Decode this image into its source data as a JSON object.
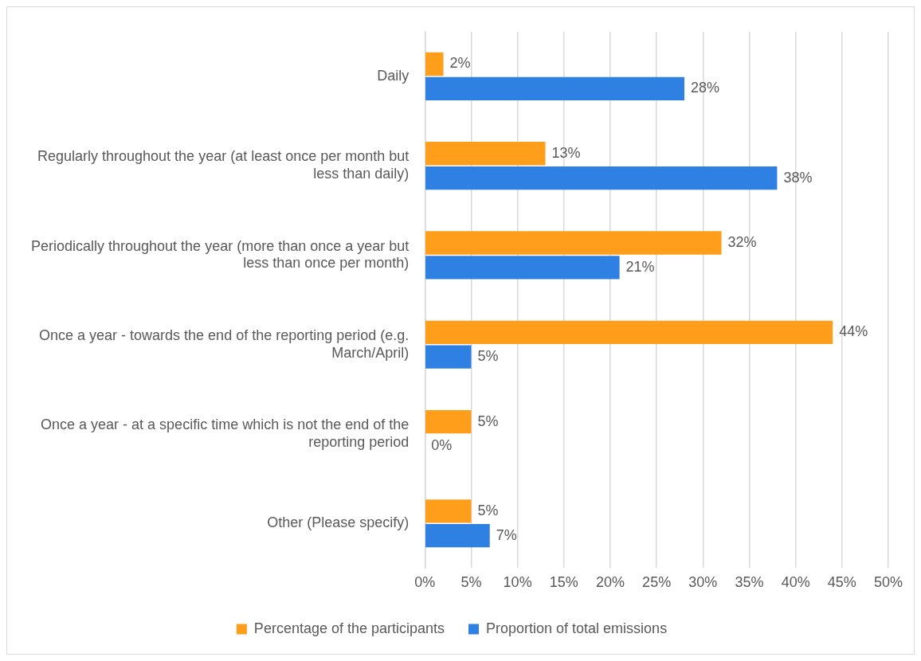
{
  "chart_data": {
    "type": "bar",
    "orientation": "horizontal",
    "categories": [
      "Daily",
      "Regularly throughout the year (at least once per month but less than daily)",
      "Periodically throughout the year (more than once a year but less than once per month)",
      "Once a year - towards the end of the reporting period (e.g. March/April)",
      "Once a year - at a specific time which is not the end of the reporting period",
      "Other (Please specify)"
    ],
    "series": [
      {
        "name": "Percentage of the participants",
        "color": "#ff9e1b",
        "values": [
          2,
          13,
          32,
          44,
          5,
          5
        ],
        "value_labels": [
          "2%",
          "13%",
          "32%",
          "44%",
          "5%",
          "5%"
        ]
      },
      {
        "name": "Proportion of total emissions",
        "color": "#2f80e3",
        "values": [
          28,
          38,
          21,
          5,
          0,
          7
        ],
        "value_labels": [
          "28%",
          "38%",
          "21%",
          "5%",
          "0%",
          "7%"
        ]
      }
    ],
    "xlim": [
      0,
      50
    ],
    "xticks": [
      {
        "value": 0,
        "label": "0%"
      },
      {
        "value": 5,
        "label": "5%"
      },
      {
        "value": 10,
        "label": "10%"
      },
      {
        "value": 15,
        "label": "15%"
      },
      {
        "value": 20,
        "label": "20%"
      },
      {
        "value": 25,
        "label": "25%"
      },
      {
        "value": 30,
        "label": "30%"
      },
      {
        "value": 35,
        "label": "35%"
      },
      {
        "value": 40,
        "label": "40%"
      },
      {
        "value": 45,
        "label": "45%"
      },
      {
        "value": 50,
        "label": "50%"
      }
    ],
    "grid": "x",
    "legend": "bottom"
  }
}
